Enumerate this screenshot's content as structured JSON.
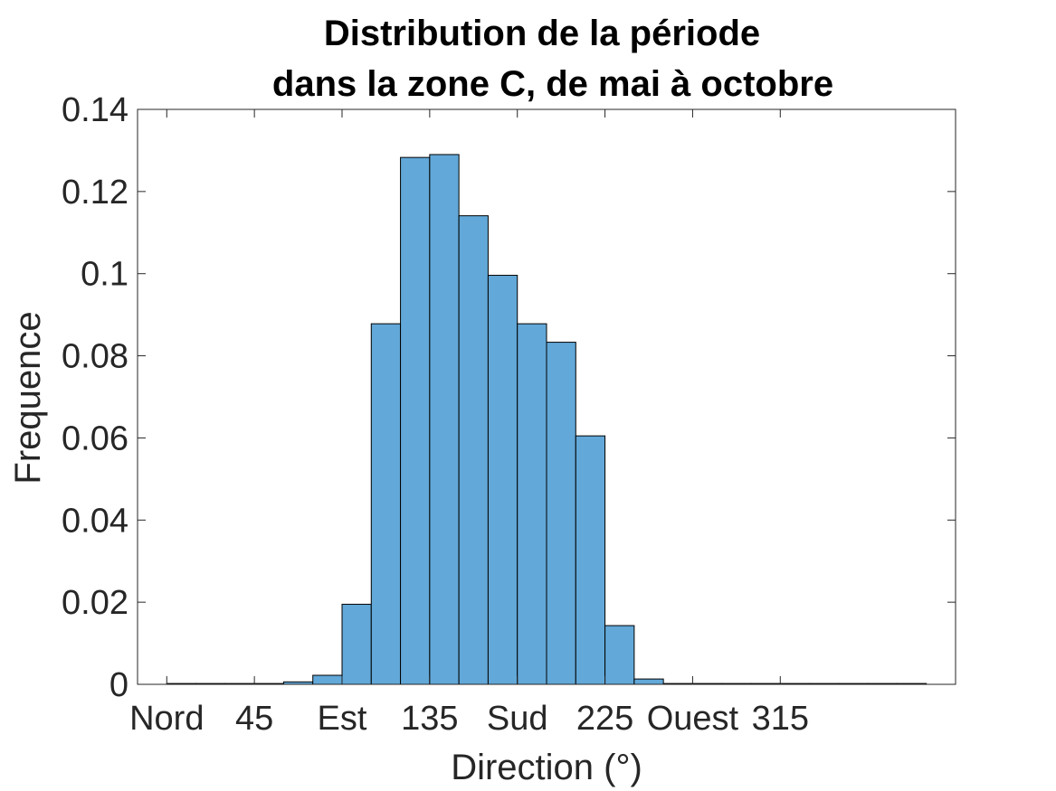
{
  "chart_data": {
    "type": "bar",
    "title_lines": [
      "Distribution de la période",
      "dans la zone C, de mai à octobre"
    ],
    "xlabel": "Direction (°)",
    "ylabel": "Frequence",
    "xlim": [
      -15,
      405
    ],
    "ylim": [
      0,
      0.14
    ],
    "bin_width": 15,
    "bin_starts": [
      0,
      15,
      30,
      45,
      60,
      75,
      90,
      105,
      120,
      135,
      150,
      165,
      180,
      195,
      210,
      225,
      240,
      255,
      270,
      285,
      300,
      315,
      330,
      345,
      360,
      375
    ],
    "values": [
      0.0002,
      0.0002,
      0.0002,
      0.0002,
      0.0006,
      0.0022,
      0.0195,
      0.0878,
      0.1283,
      0.129,
      0.1141,
      0.0996,
      0.0878,
      0.0833,
      0.0605,
      0.0143,
      0.0013,
      0.0002,
      0.0002,
      0.0002,
      0.0002,
      0.0002,
      0.0002,
      0.0002,
      0.0002,
      0.0002
    ],
    "x_ticks": [
      {
        "value": 0,
        "label": "Nord"
      },
      {
        "value": 45,
        "label": "45"
      },
      {
        "value": 90,
        "label": "Est"
      },
      {
        "value": 135,
        "label": "135"
      },
      {
        "value": 180,
        "label": "Sud"
      },
      {
        "value": 225,
        "label": "225"
      },
      {
        "value": 270,
        "label": "Ouest"
      },
      {
        "value": 315,
        "label": "315"
      }
    ],
    "y_ticks": [
      {
        "value": 0,
        "label": "0"
      },
      {
        "value": 0.02,
        "label": "0.02"
      },
      {
        "value": 0.04,
        "label": "0.04"
      },
      {
        "value": 0.06,
        "label": "0.06"
      },
      {
        "value": 0.08,
        "label": "0.08"
      },
      {
        "value": 0.1,
        "label": "0.1"
      },
      {
        "value": 0.12,
        "label": "0.12"
      },
      {
        "value": 0.14,
        "label": "0.14"
      }
    ],
    "grid": false,
    "box": true,
    "colors": {
      "bar_fill": "#62a8d8",
      "bar_edge": "#000000",
      "axis": "#262626"
    }
  }
}
